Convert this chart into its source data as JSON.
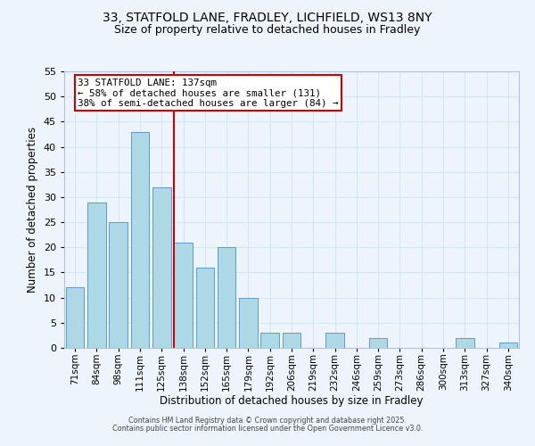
{
  "title_line1": "33, STATFOLD LANE, FRADLEY, LICHFIELD, WS13 8NY",
  "title_line2": "Size of property relative to detached houses in Fradley",
  "xlabel": "Distribution of detached houses by size in Fradley",
  "ylabel": "Number of detached properties",
  "bar_labels": [
    "71sqm",
    "84sqm",
    "98sqm",
    "111sqm",
    "125sqm",
    "138sqm",
    "152sqm",
    "165sqm",
    "179sqm",
    "192sqm",
    "206sqm",
    "219sqm",
    "232sqm",
    "246sqm",
    "259sqm",
    "273sqm",
    "286sqm",
    "300sqm",
    "313sqm",
    "327sqm",
    "340sqm"
  ],
  "bar_values": [
    12,
    29,
    25,
    43,
    32,
    21,
    16,
    20,
    10,
    3,
    3,
    0,
    3,
    0,
    2,
    0,
    0,
    0,
    2,
    0,
    1
  ],
  "bar_color": "#add8e6",
  "bar_edge_color": "#5b9bd5",
  "reference_line_color": "#cc0000",
  "annotation_line1": "33 STATFOLD LANE: 137sqm",
  "annotation_line2": "← 58% of detached houses are smaller (131)",
  "annotation_line3": "38% of semi-detached houses are larger (84) →",
  "annotation_box_color": "#ffffff",
  "annotation_box_edge_color": "#cc0000",
  "ylim": [
    0,
    55
  ],
  "yticks": [
    0,
    5,
    10,
    15,
    20,
    25,
    30,
    35,
    40,
    45,
    50,
    55
  ],
  "footer_line1": "Contains HM Land Registry data © Crown copyright and database right 2025.",
  "footer_line2": "Contains public sector information licensed under the Open Government Licence v3.0.",
  "grid_color": "#d0e8f5",
  "background_color": "#eef4fc"
}
